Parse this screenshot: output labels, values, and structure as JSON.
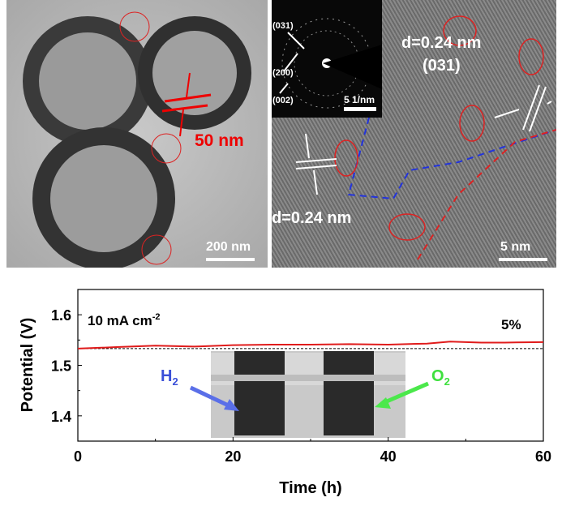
{
  "tem_panel": {
    "scale_bar": "200 nm",
    "thickness_label": "50 nm"
  },
  "hrtem_panel": {
    "scale_bar": "5 nm",
    "d_spacing_1": "d=0.24 nm",
    "plane_1": "(031)",
    "d_spacing_2": "d=0.24 nm",
    "saed_inset": {
      "labels": [
        "(031)",
        "(200)",
        "(002)"
      ],
      "scale_bar": "5 1/nm"
    }
  },
  "chart_data": {
    "type": "line",
    "xlabel": "Time (h)",
    "ylabel": "Potential (V)",
    "xlim": [
      0,
      60
    ],
    "ylim": [
      1.35,
      1.65
    ],
    "xticks": [
      "0",
      "20",
      "40",
      "60"
    ],
    "yticks": [
      "1.4",
      "1.5",
      "1.6"
    ],
    "annotation_current": "10 mA cm",
    "annotation_current_sup": "-2",
    "annotation_percent": "5%",
    "series": [
      {
        "name": "Potential",
        "color": "#e01b1b",
        "x": [
          0,
          5,
          10,
          15,
          20,
          25,
          30,
          35,
          40,
          45,
          48,
          52,
          55,
          60
        ],
        "y": [
          1.533,
          1.536,
          1.539,
          1.537,
          1.54,
          1.541,
          1.541,
          1.542,
          1.541,
          1.543,
          1.547,
          1.545,
          1.545,
          1.546
        ]
      }
    ],
    "reference_line": 1.533,
    "inset_labels": {
      "h2": "H",
      "h2_sub": "2",
      "o2": "O",
      "o2_sub": "2"
    },
    "colors": {
      "h2": "#3a4fd8",
      "o2": "#3ee03e"
    }
  }
}
